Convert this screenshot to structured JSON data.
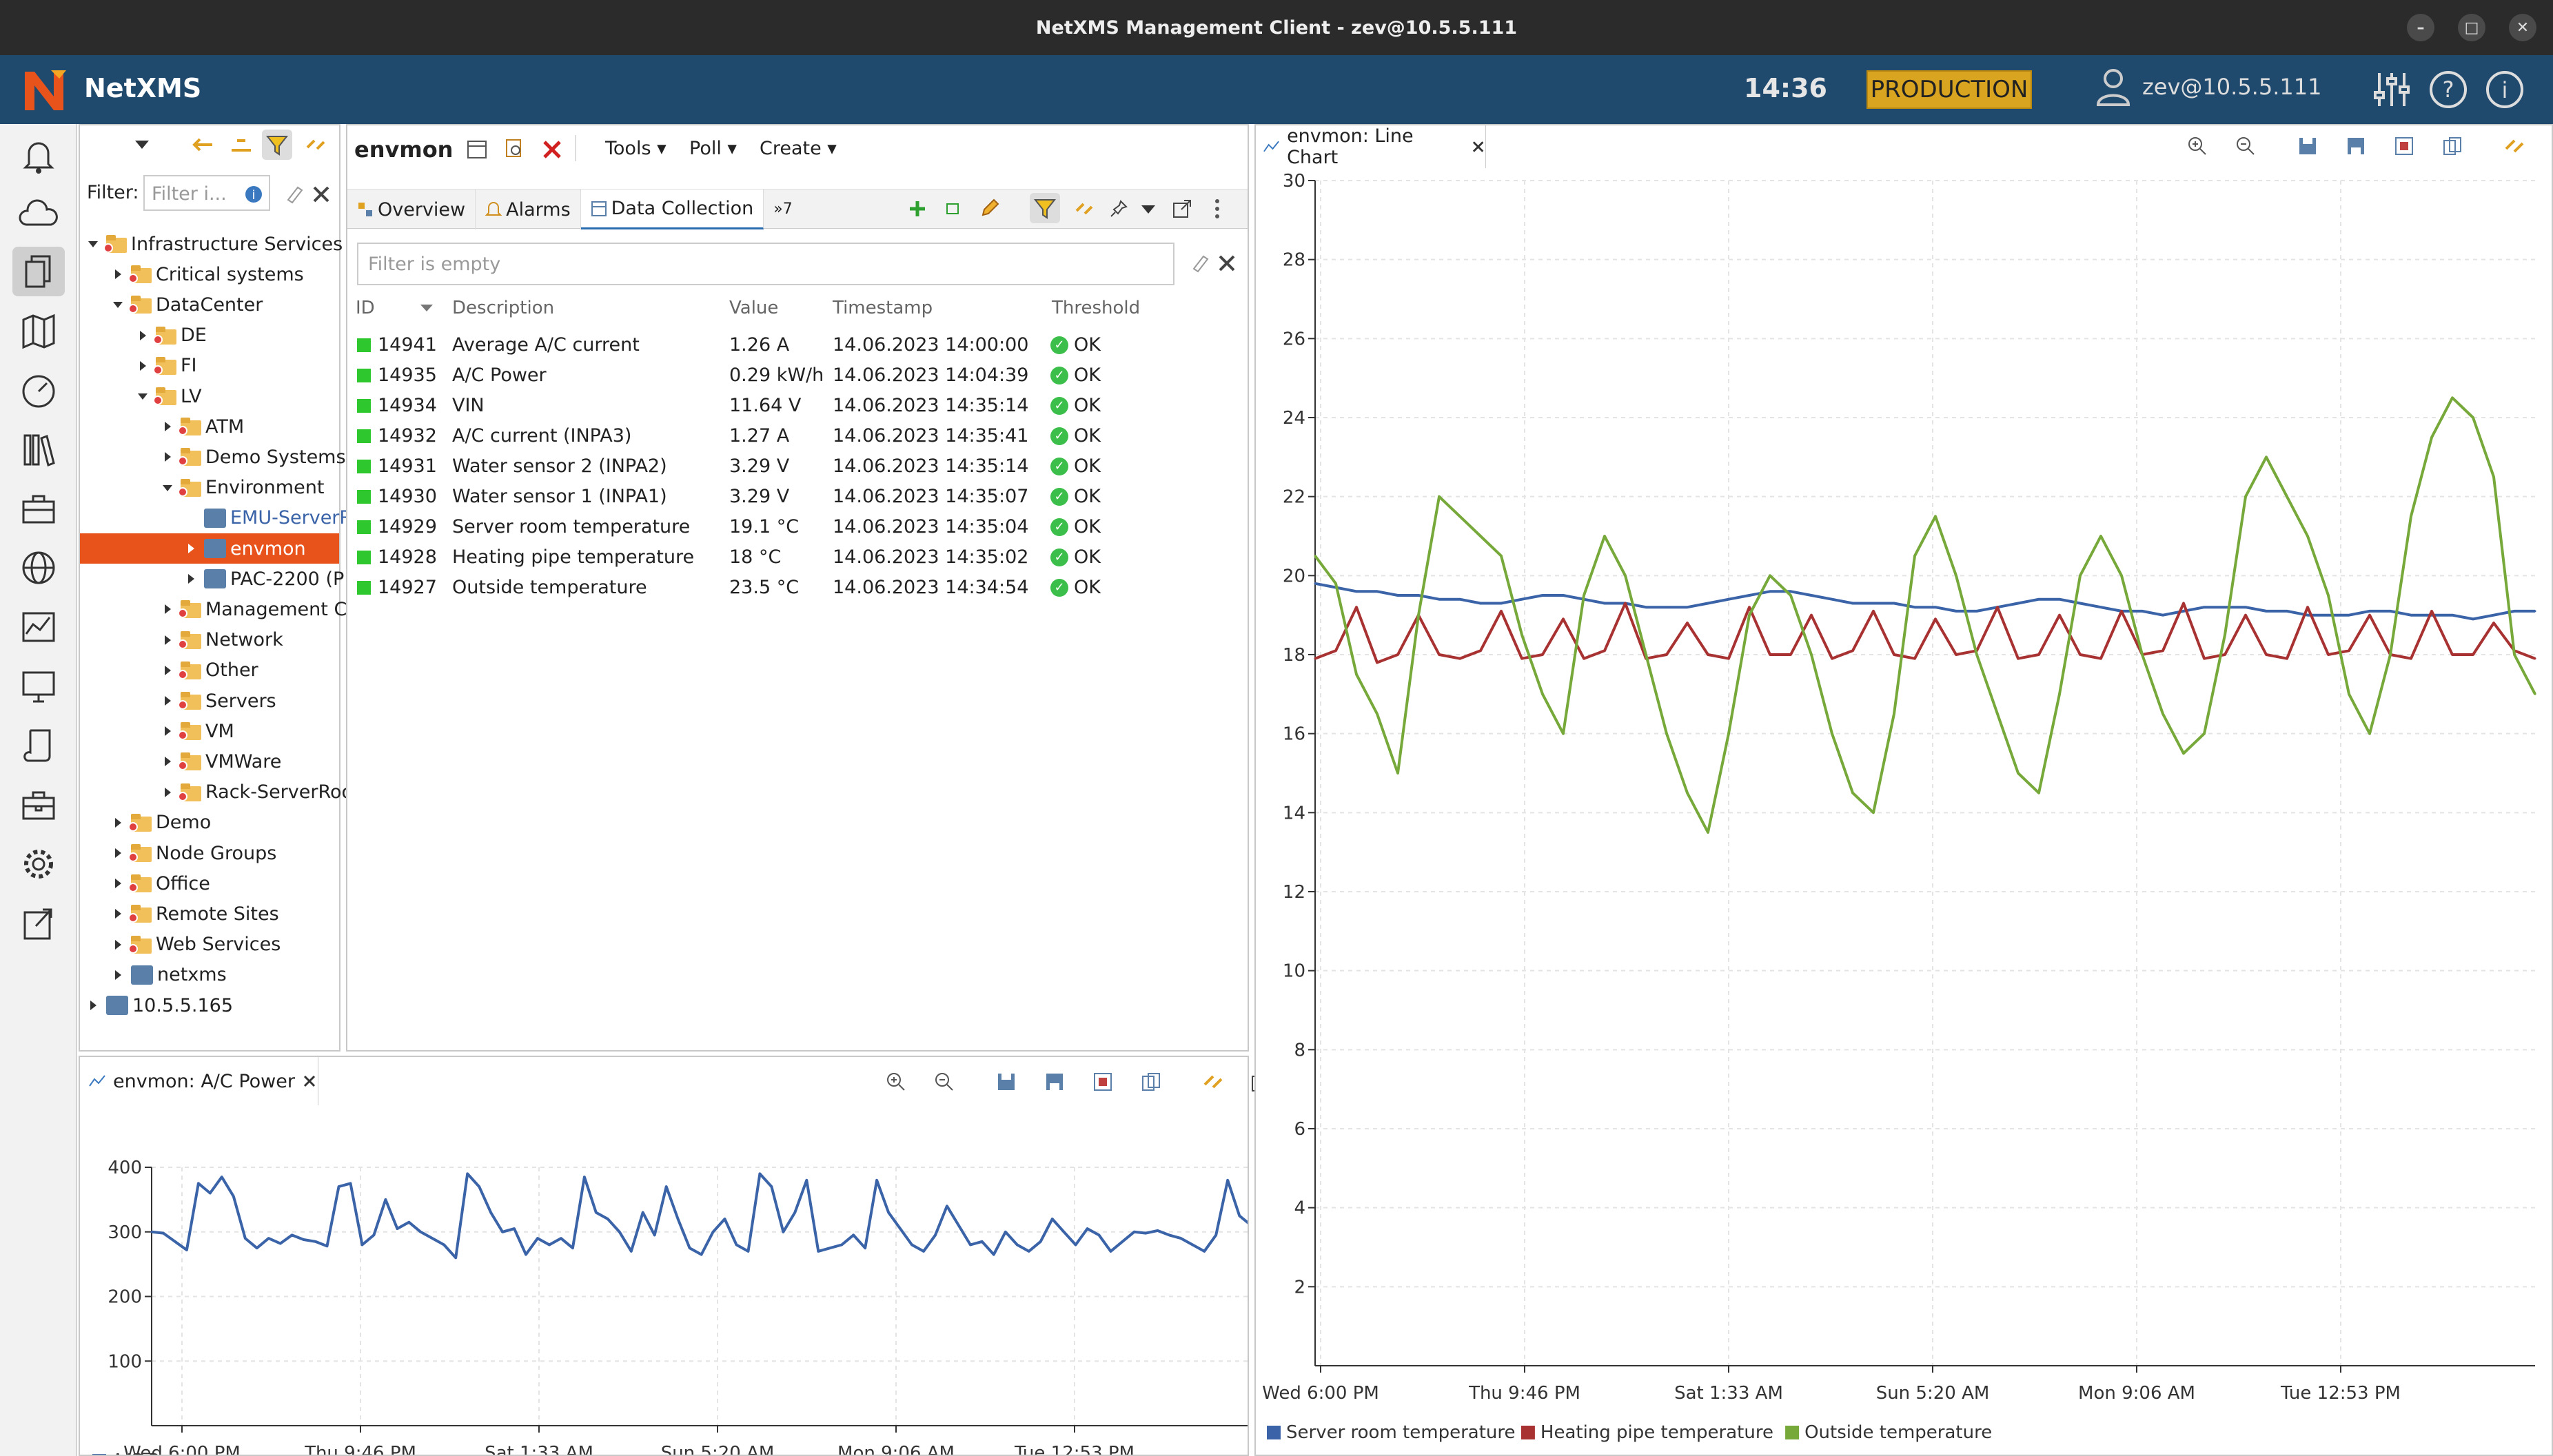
{
  "window": {
    "title": "NetXMS Management Client - zev@10.5.5.111",
    "controls": [
      "–",
      "□",
      "✕"
    ]
  },
  "header": {
    "brand": "NetXMS",
    "time": "14:36",
    "environment_badge": "PRODUCTION",
    "user": "zev@10.5.5.111"
  },
  "left_toolbar": {
    "icons": [
      "bell-icon",
      "cloud-icon",
      "documents-icon",
      "map-icon",
      "dashboard-icon",
      "library-icon",
      "toolbox-icon",
      "globe-icon",
      "graph-icon",
      "monitor-icon",
      "script-icon",
      "briefcase-icon",
      "gear-icon",
      "export-icon"
    ]
  },
  "tree_panel": {
    "filter_label": "Filter:",
    "filter_placeholder": "Filter i...",
    "items": [
      {
        "label": "Infrastructure Services",
        "level": 0,
        "expanded": true
      },
      {
        "label": "Critical systems",
        "level": 1
      },
      {
        "label": "DataCenter",
        "level": 1,
        "expanded": true
      },
      {
        "label": "DE",
        "level": 2
      },
      {
        "label": "FI",
        "level": 2
      },
      {
        "label": "LV",
        "level": 2,
        "expanded": true
      },
      {
        "label": "ATM",
        "level": 3
      },
      {
        "label": "Demo Systems",
        "level": 3
      },
      {
        "label": "Environment",
        "level": 3,
        "expanded": true
      },
      {
        "label": "EMU-ServerR",
        "level": 4
      },
      {
        "label": "envmon",
        "level": 4,
        "selected": true
      },
      {
        "label": "PAC-2200 (P",
        "level": 4
      },
      {
        "label": "Management C",
        "level": 3
      },
      {
        "label": "Network",
        "level": 3
      },
      {
        "label": "Other",
        "level": 3
      },
      {
        "label": "Servers",
        "level": 3
      },
      {
        "label": "VM",
        "level": 3
      },
      {
        "label": "VMWare",
        "level": 3
      },
      {
        "label": "Rack-ServerRoo",
        "level": 3
      },
      {
        "label": "Demo",
        "level": 1
      },
      {
        "label": "Node Groups",
        "level": 1
      },
      {
        "label": "Office",
        "level": 1
      },
      {
        "label": "Remote Sites",
        "level": 1
      },
      {
        "label": "Web Services",
        "level": 1
      },
      {
        "label": "netxms",
        "level": 1
      },
      {
        "label": "10.5.5.165",
        "level": 0
      }
    ]
  },
  "object_panel": {
    "title": "envmon",
    "menus": [
      "Tools ▾",
      "Poll ▾",
      "Create ▾"
    ],
    "tabs": [
      "Overview",
      "Alarms",
      "Data Collection"
    ],
    "tabs_overflow": "»7",
    "filter_placeholder": "Filter is empty",
    "columns": [
      "ID",
      "Description",
      "Value",
      "Timestamp",
      "Threshold"
    ],
    "rows": [
      {
        "id": "14941",
        "description": "Average A/C current",
        "value": "1.26 A",
        "timestamp": "14.06.2023 14:00:00",
        "threshold": "OK"
      },
      {
        "id": "14935",
        "description": "A/C Power",
        "value": "0.29 kW/h",
        "timestamp": "14.06.2023 14:04:39",
        "threshold": "OK"
      },
      {
        "id": "14934",
        "description": "VIN",
        "value": "11.64 V",
        "timestamp": "14.06.2023 14:35:14",
        "threshold": "OK"
      },
      {
        "id": "14932",
        "description": "A/C current (INPA3)",
        "value": "1.27 A",
        "timestamp": "14.06.2023 14:35:41",
        "threshold": "OK"
      },
      {
        "id": "14931",
        "description": "Water sensor 2 (INPA2)",
        "value": "3.29 V",
        "timestamp": "14.06.2023 14:35:14",
        "threshold": "OK"
      },
      {
        "id": "14930",
        "description": "Water sensor 1 (INPA1)",
        "value": "3.29 V",
        "timestamp": "14.06.2023 14:35:07",
        "threshold": "OK"
      },
      {
        "id": "14929",
        "description": "Server room temperature",
        "value": "19.1 °C",
        "timestamp": "14.06.2023 14:35:04",
        "threshold": "OK"
      },
      {
        "id": "14928",
        "description": "Heating pipe temperature",
        "value": "18 °C",
        "timestamp": "14.06.2023 14:35:02",
        "threshold": "OK"
      },
      {
        "id": "14927",
        "description": "Outside temperature",
        "value": "23.5 °C",
        "timestamp": "14.06.2023 14:34:54",
        "threshold": "OK"
      }
    ]
  },
  "small_chart_panel": {
    "tab": "envmon: A/C Power"
  },
  "big_chart_panel": {
    "tab": "envmon: Line Chart"
  },
  "colors": {
    "header": "#1f4a6e",
    "badge": "#d9a520",
    "selection": "#e8531c",
    "series_blue": "#3a63a8",
    "series_red": "#a83232",
    "series_green": "#76a83a"
  },
  "chart_data": [
    {
      "type": "line",
      "x_ticks": [
        "Wed 6:00 PM",
        "Thu 9:46 PM",
        "Sat 1:33 AM",
        "Sun 5:20 AM",
        "Mon 9:06 AM",
        "Tue 12:53 PM"
      ],
      "y_ticks": [
        "400",
        "300",
        "200",
        "100"
      ],
      "ylim": [
        0,
        400
      ],
      "grid": true,
      "legend_position": "bottom-left",
      "series": [
        {
          "name": "A/C Power",
          "color": "#3a63a8",
          "values": [
            300,
            298,
            285,
            272,
            375,
            360,
            385,
            355,
            290,
            275,
            290,
            282,
            295,
            288,
            285,
            278,
            370,
            375,
            280,
            295,
            350,
            305,
            315,
            300,
            290,
            280,
            260,
            390,
            370,
            330,
            300,
            305,
            265,
            290,
            280,
            290,
            275,
            385,
            330,
            320,
            300,
            270,
            330,
            295,
            370,
            320,
            275,
            265,
            300,
            320,
            280,
            270,
            390,
            370,
            300,
            330,
            380,
            270,
            275,
            280,
            295,
            275,
            380,
            330,
            305,
            280,
            270,
            295,
            340,
            310,
            280,
            285,
            265,
            300,
            280,
            270,
            285,
            320,
            300,
            280,
            305,
            295,
            270,
            285,
            300,
            298,
            302,
            295,
            290,
            280,
            270,
            295,
            380,
            325,
            310,
            280,
            270,
            285,
            300,
            290
          ]
        }
      ]
    },
    {
      "type": "line",
      "x_ticks": [
        "Wed 6:00 PM",
        "Thu 9:46 PM",
        "Sat 1:33 AM",
        "Sun 5:20 AM",
        "Mon 9:06 AM",
        "Tue 12:53 PM"
      ],
      "y_ticks": [
        "30",
        "28",
        "26",
        "24",
        "22",
        "20",
        "18",
        "16",
        "14",
        "12",
        "10",
        "8",
        "6",
        "4",
        "2"
      ],
      "ylim": [
        0,
        30
      ],
      "grid": true,
      "legend_position": "bottom-left",
      "series": [
        {
          "name": "Server room temperature",
          "color": "#3a63a8",
          "values": [
            19.8,
            19.7,
            19.6,
            19.6,
            19.5,
            19.5,
            19.4,
            19.4,
            19.3,
            19.3,
            19.4,
            19.5,
            19.5,
            19.4,
            19.3,
            19.3,
            19.2,
            19.2,
            19.2,
            19.3,
            19.4,
            19.5,
            19.6,
            19.6,
            19.5,
            19.4,
            19.3,
            19.3,
            19.3,
            19.2,
            19.2,
            19.1,
            19.1,
            19.2,
            19.3,
            19.4,
            19.4,
            19.3,
            19.2,
            19.1,
            19.1,
            19.0,
            19.1,
            19.2,
            19.2,
            19.2,
            19.1,
            19.1,
            19.0,
            19.0,
            19.0,
            19.1,
            19.1,
            19.0,
            19.0,
            19.0,
            18.9,
            19.0,
            19.1,
            19.1
          ]
        },
        {
          "name": "Heating pipe temperature",
          "color": "#a83232",
          "values": [
            17.9,
            18.1,
            19.2,
            17.8,
            18.0,
            19.0,
            18.0,
            17.9,
            18.1,
            19.1,
            17.9,
            18.0,
            18.9,
            17.9,
            18.1,
            19.3,
            17.9,
            18.0,
            18.8,
            18.0,
            17.9,
            19.2,
            18.0,
            18.0,
            19.0,
            17.9,
            18.1,
            19.1,
            18.0,
            17.9,
            18.9,
            18.0,
            18.1,
            19.2,
            17.9,
            18.0,
            19.0,
            18.0,
            17.9,
            19.1,
            18.0,
            18.1,
            19.3,
            17.9,
            18.0,
            19.0,
            18.0,
            17.9,
            19.2,
            18.0,
            18.1,
            19.0,
            18.0,
            17.9,
            19.1,
            18.0,
            18.0,
            18.8,
            18.1,
            17.9
          ]
        },
        {
          "name": "Outside temperature",
          "color": "#76a83a",
          "values": [
            20.5,
            19.8,
            17.5,
            16.5,
            15.0,
            19.0,
            22.0,
            21.5,
            21.0,
            20.5,
            18.5,
            17.0,
            16.0,
            19.5,
            21.0,
            20.0,
            18.0,
            16.0,
            14.5,
            13.5,
            16.0,
            19.0,
            20.0,
            19.5,
            18.0,
            16.0,
            14.5,
            14.0,
            16.5,
            20.5,
            21.5,
            20.0,
            18.0,
            16.5,
            15.0,
            14.5,
            17.0,
            20.0,
            21.0,
            20.0,
            18.0,
            16.5,
            15.5,
            16.0,
            18.5,
            22.0,
            23.0,
            22.0,
            21.0,
            19.5,
            17.0,
            16.0,
            18.0,
            21.5,
            23.5,
            24.5,
            24.0,
            22.5,
            18.0,
            17.0
          ]
        }
      ]
    }
  ]
}
